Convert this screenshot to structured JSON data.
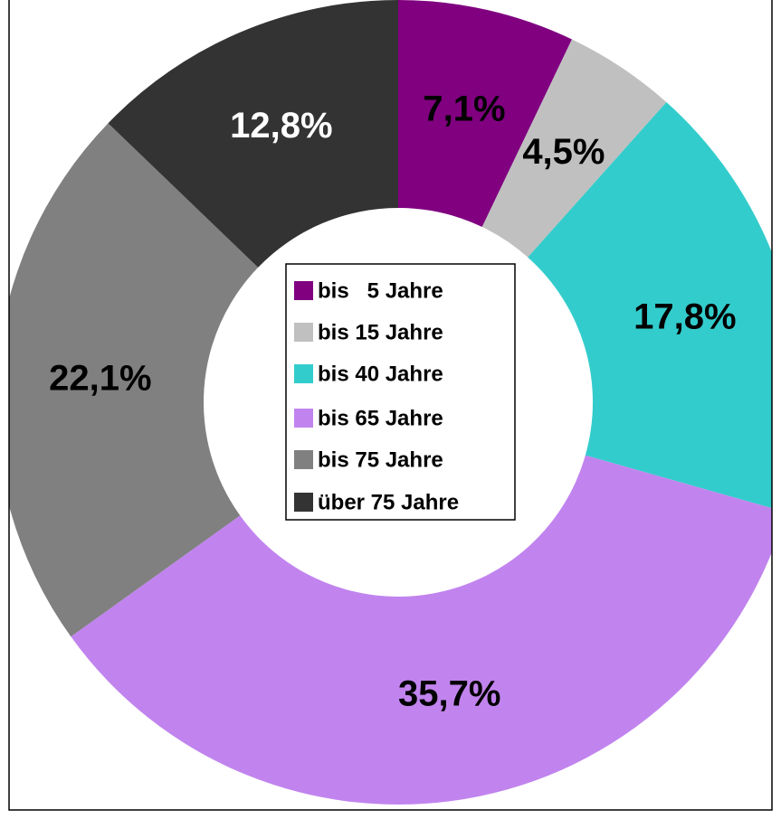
{
  "chart_data": {
    "type": "donut",
    "categories": [
      "bis   5 Jahre",
      "bis 15 Jahre",
      "bis 40 Jahre",
      "bis 65 Jahre",
      "bis 75 Jahre",
      "über 75 Jahre"
    ],
    "values": [
      7.1,
      4.5,
      17.8,
      35.7,
      22.1,
      12.8
    ],
    "value_labels": [
      "7,1%",
      "4,5%",
      "17,8%",
      "35,7%",
      "22,1%",
      "12,8%"
    ],
    "colors": [
      "#800080",
      "#c0c0c0",
      "#33cccc",
      "#c184ee",
      "#808080",
      "#333333"
    ],
    "label_colors": [
      "#000000",
      "#000000",
      "#000000",
      "#000000",
      "#000000",
      "#ffffff"
    ],
    "legend": "center"
  }
}
